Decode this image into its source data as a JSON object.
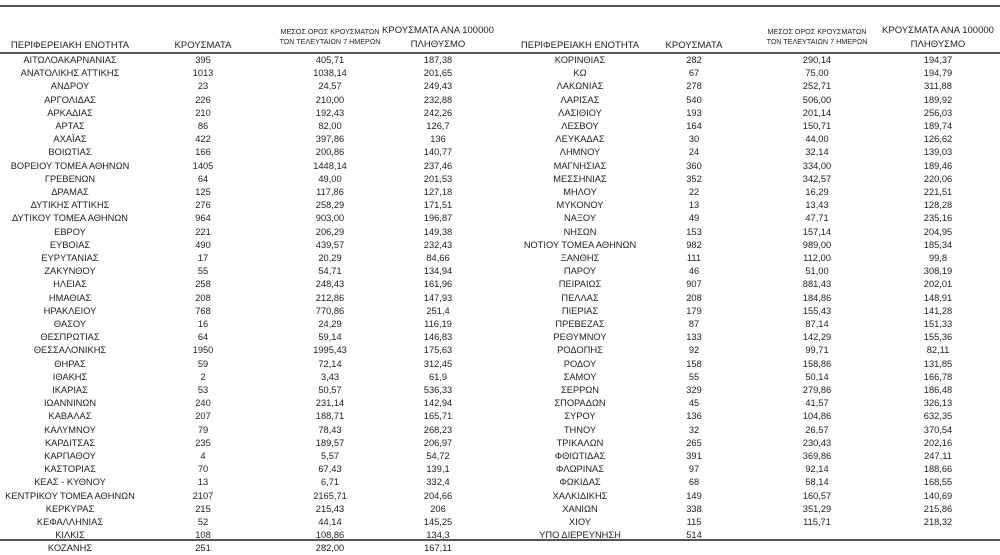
{
  "headers": {
    "region": "ΠΕΡΙΦΕΡΕΙΑΚΗ ΕΝΟΤΗΤΑ",
    "cases": "ΚΡΟΥΣΜΑΤΑ",
    "avg_line1": "ΜΕΣΟΣ ΟΡΟΣ ΚΡΟΥΣΜΑΤΩΝ",
    "avg_line2": "ΤΩΝ ΤΕΛΕΥΤΑΙΩΝ 7 ΗΜΕΡΩΝ",
    "rate_line1": "ΚΡΟΥΣΜΑΤΑ ΑΝΑ 100000",
    "rate_line2": "ΠΛΗΘΥΣΜΟ"
  },
  "left_rows": [
    [
      "ΑΙΤΩΛΟΑΚΑΡΝΑΝΙΑΣ",
      "395",
      "405,71",
      "187,38"
    ],
    [
      "ΑΝΑΤΟΛΙΚΗΣ ΑΤΤΙΚΗΣ",
      "1013",
      "1038,14",
      "201,65"
    ],
    [
      "ΑΝΔΡΟΥ",
      "23",
      "24,57",
      "249,43"
    ],
    [
      "ΑΡΓΟΛΙΔΑΣ",
      "226",
      "210,00",
      "232,88"
    ],
    [
      "ΑΡΚΑΔΙΑΣ",
      "210",
      "192,43",
      "242,26"
    ],
    [
      "ΑΡΤΑΣ",
      "86",
      "82,00",
      "126,7"
    ],
    [
      "ΑΧΑΪΑΣ",
      "422",
      "397,86",
      "136"
    ],
    [
      "ΒΟΙΩΤΙΑΣ",
      "166",
      "200,86",
      "140,77"
    ],
    [
      "ΒΟΡΕΙΟΥ ΤΟΜΕΑ ΑΘΗΝΩΝ",
      "1405",
      "1448,14",
      "237,46"
    ],
    [
      "ΓΡΕΒΕΝΩΝ",
      "64",
      "49,00",
      "201,53"
    ],
    [
      "ΔΡΑΜΑΣ",
      "125",
      "117,86",
      "127,18"
    ],
    [
      "ΔΥΤΙΚΗΣ ΑΤΤΙΚΗΣ",
      "276",
      "258,29",
      "171,51"
    ],
    [
      "ΔΥΤΙΚΟΥ ΤΟΜΕΑ ΑΘΗΝΩΝ",
      "964",
      "903,00",
      "196,87"
    ],
    [
      "ΕΒΡΟΥ",
      "221",
      "206,29",
      "149,38"
    ],
    [
      "ΕΥΒΟΙΑΣ",
      "490",
      "439,57",
      "232,43"
    ],
    [
      "ΕΥΡΥΤΑΝΙΑΣ",
      "17",
      "20,29",
      "84,66"
    ],
    [
      "ΖΑΚΥΝΘΟΥ",
      "55",
      "54,71",
      "134,94"
    ],
    [
      "ΗΛΕΙΑΣ",
      "258",
      "248,43",
      "161,96"
    ],
    [
      "ΗΜΑΘΙΑΣ",
      "208",
      "212,86",
      "147,93"
    ],
    [
      "ΗΡΑΚΛΕΙΟΥ",
      "768",
      "770,86",
      "251,4"
    ],
    [
      "ΘΑΣΟΥ",
      "16",
      "24,29",
      "116,19"
    ],
    [
      "ΘΕΣΠΡΩΤΙΑΣ",
      "64",
      "59,14",
      "146,83"
    ],
    [
      "ΘΕΣΣΑΛΟΝΙΚΗΣ",
      "1950",
      "1995,43",
      "175,63"
    ],
    [
      "ΘΗΡΑΣ",
      "59",
      "72,14",
      "312,45"
    ],
    [
      "ΙΘΑΚΗΣ",
      "2",
      "3,43",
      "61,9"
    ],
    [
      "ΙΚΑΡΙΑΣ",
      "53",
      "50,57",
      "536,33"
    ],
    [
      "ΙΩΑΝΝΙΝΩΝ",
      "240",
      "231,14",
      "142,94"
    ],
    [
      "ΚΑΒΑΛΑΣ",
      "207",
      "188,71",
      "165,71"
    ],
    [
      "ΚΑΛΥΜΝΟΥ",
      "79",
      "78,43",
      "268,23"
    ],
    [
      "ΚΑΡΔΙΤΣΑΣ",
      "235",
      "189,57",
      "206,97"
    ],
    [
      "ΚΑΡΠΑΘΟΥ",
      "4",
      "5,57",
      "54,72"
    ],
    [
      "ΚΑΣΤΟΡΙΑΣ",
      "70",
      "67,43",
      "139,1"
    ],
    [
      "ΚΕΑΣ - ΚΥΘΝΟΥ",
      "13",
      "6,71",
      "332,4"
    ],
    [
      "ΚΕΝΤΡΙΚΟΥ ΤΟΜΕΑ ΑΘΗΝΩΝ",
      "2107",
      "2165,71",
      "204,66"
    ],
    [
      "ΚΕΡΚΥΡΑΣ",
      "215",
      "215,43",
      "206"
    ],
    [
      "ΚΕΦΑΛΛΗΝΙΑΣ",
      "52",
      "44,14",
      "145,25"
    ],
    [
      "ΚΙΛΚΙΣ",
      "108",
      "108,86",
      "134,3"
    ],
    [
      "ΚΟΖΑΝΗΣ",
      "251",
      "282,00",
      "167,11"
    ]
  ],
  "right_rows": [
    [
      "ΚΟΡΙΝΘΙΑΣ",
      "282",
      "290,14",
      "194,37"
    ],
    [
      "ΚΩ",
      "67",
      "75,00",
      "194,79"
    ],
    [
      "ΛΑΚΩΝΙΑΣ",
      "278",
      "252,71",
      "311,88"
    ],
    [
      "ΛΑΡΙΣΑΣ",
      "540",
      "506,00",
      "189,92"
    ],
    [
      "ΛΑΣΙΘΙΟΥ",
      "193",
      "201,14",
      "256,03"
    ],
    [
      "ΛΕΣΒΟΥ",
      "164",
      "150,71",
      "189,74"
    ],
    [
      "ΛΕΥΚΑΔΑΣ",
      "30",
      "44,00",
      "126,62"
    ],
    [
      "ΛΗΜΝΟΥ",
      "24",
      "32,14",
      "139,03"
    ],
    [
      "ΜΑΓΝΗΣΙΑΣ",
      "360",
      "334,00",
      "189,46"
    ],
    [
      "ΜΕΣΣΗΝΙΑΣ",
      "352",
      "342,57",
      "220,06"
    ],
    [
      "ΜΗΛΟΥ",
      "22",
      "16,29",
      "221,51"
    ],
    [
      "ΜΥΚΟΝΟΥ",
      "13",
      "13,43",
      "128,28"
    ],
    [
      "ΝΑΞΟΥ",
      "49",
      "47,71",
      "235,16"
    ],
    [
      "ΝΗΣΩΝ",
      "153",
      "157,14",
      "204,95"
    ],
    [
      "ΝΟΤΙΟΥ ΤΟΜΕΑ ΑΘΗΝΩΝ",
      "982",
      "989,00",
      "185,34"
    ],
    [
      "ΞΑΝΘΗΣ",
      "111",
      "112,00",
      "99,8"
    ],
    [
      "ΠΑΡΟΥ",
      "46",
      "51,00",
      "308,19"
    ],
    [
      "ΠΕΙΡΑΙΩΣ",
      "907",
      "881,43",
      "202,01"
    ],
    [
      "ΠΕΛΛΑΣ",
      "208",
      "184,86",
      "148,91"
    ],
    [
      "ΠΙΕΡΙΑΣ",
      "179",
      "155,43",
      "141,28"
    ],
    [
      "ΠΡΕΒΕΖΑΣ",
      "87",
      "87,14",
      "151,33"
    ],
    [
      "ΡΕΘΥΜΝΟΥ",
      "133",
      "142,29",
      "155,36"
    ],
    [
      "ΡΟΔΟΠΗΣ",
      "92",
      "99,71",
      "82,11"
    ],
    [
      "ΡΟΔΟΥ",
      "158",
      "158,86",
      "131,85"
    ],
    [
      "ΣΑΜΟΥ",
      "55",
      "50,14",
      "166,78"
    ],
    [
      "ΣΕΡΡΩΝ",
      "329",
      "279,86",
      "186,48"
    ],
    [
      "ΣΠΟΡΑΔΩΝ",
      "45",
      "41,57",
      "326,13"
    ],
    [
      "ΣΥΡΟΥ",
      "136",
      "104,86",
      "632,35"
    ],
    [
      "ΤΗΝΟΥ",
      "32",
      "26,57",
      "370,54"
    ],
    [
      "ΤΡΙΚΑΛΩΝ",
      "265",
      "230,43",
      "202,16"
    ],
    [
      "ΦΘΙΩΤΙΔΑΣ",
      "391",
      "369,86",
      "247,11"
    ],
    [
      "ΦΛΩΡΙΝΑΣ",
      "97",
      "92,14",
      "188,66"
    ],
    [
      "ΦΩΚΙΔΑΣ",
      "68",
      "58,14",
      "168,55"
    ],
    [
      "ΧΑΛΚΙΔΙΚΗΣ",
      "149",
      "160,57",
      "140,69"
    ],
    [
      "ΧΑΝΙΩΝ",
      "338",
      "351,29",
      "215,86"
    ],
    [
      "ΧΙΟΥ",
      "115",
      "115,71",
      "218,32"
    ],
    [
      "ΥΠΟ ΔΙΕΡΕΥΝΗΣΗ",
      "514",
      "",
      ""
    ]
  ]
}
